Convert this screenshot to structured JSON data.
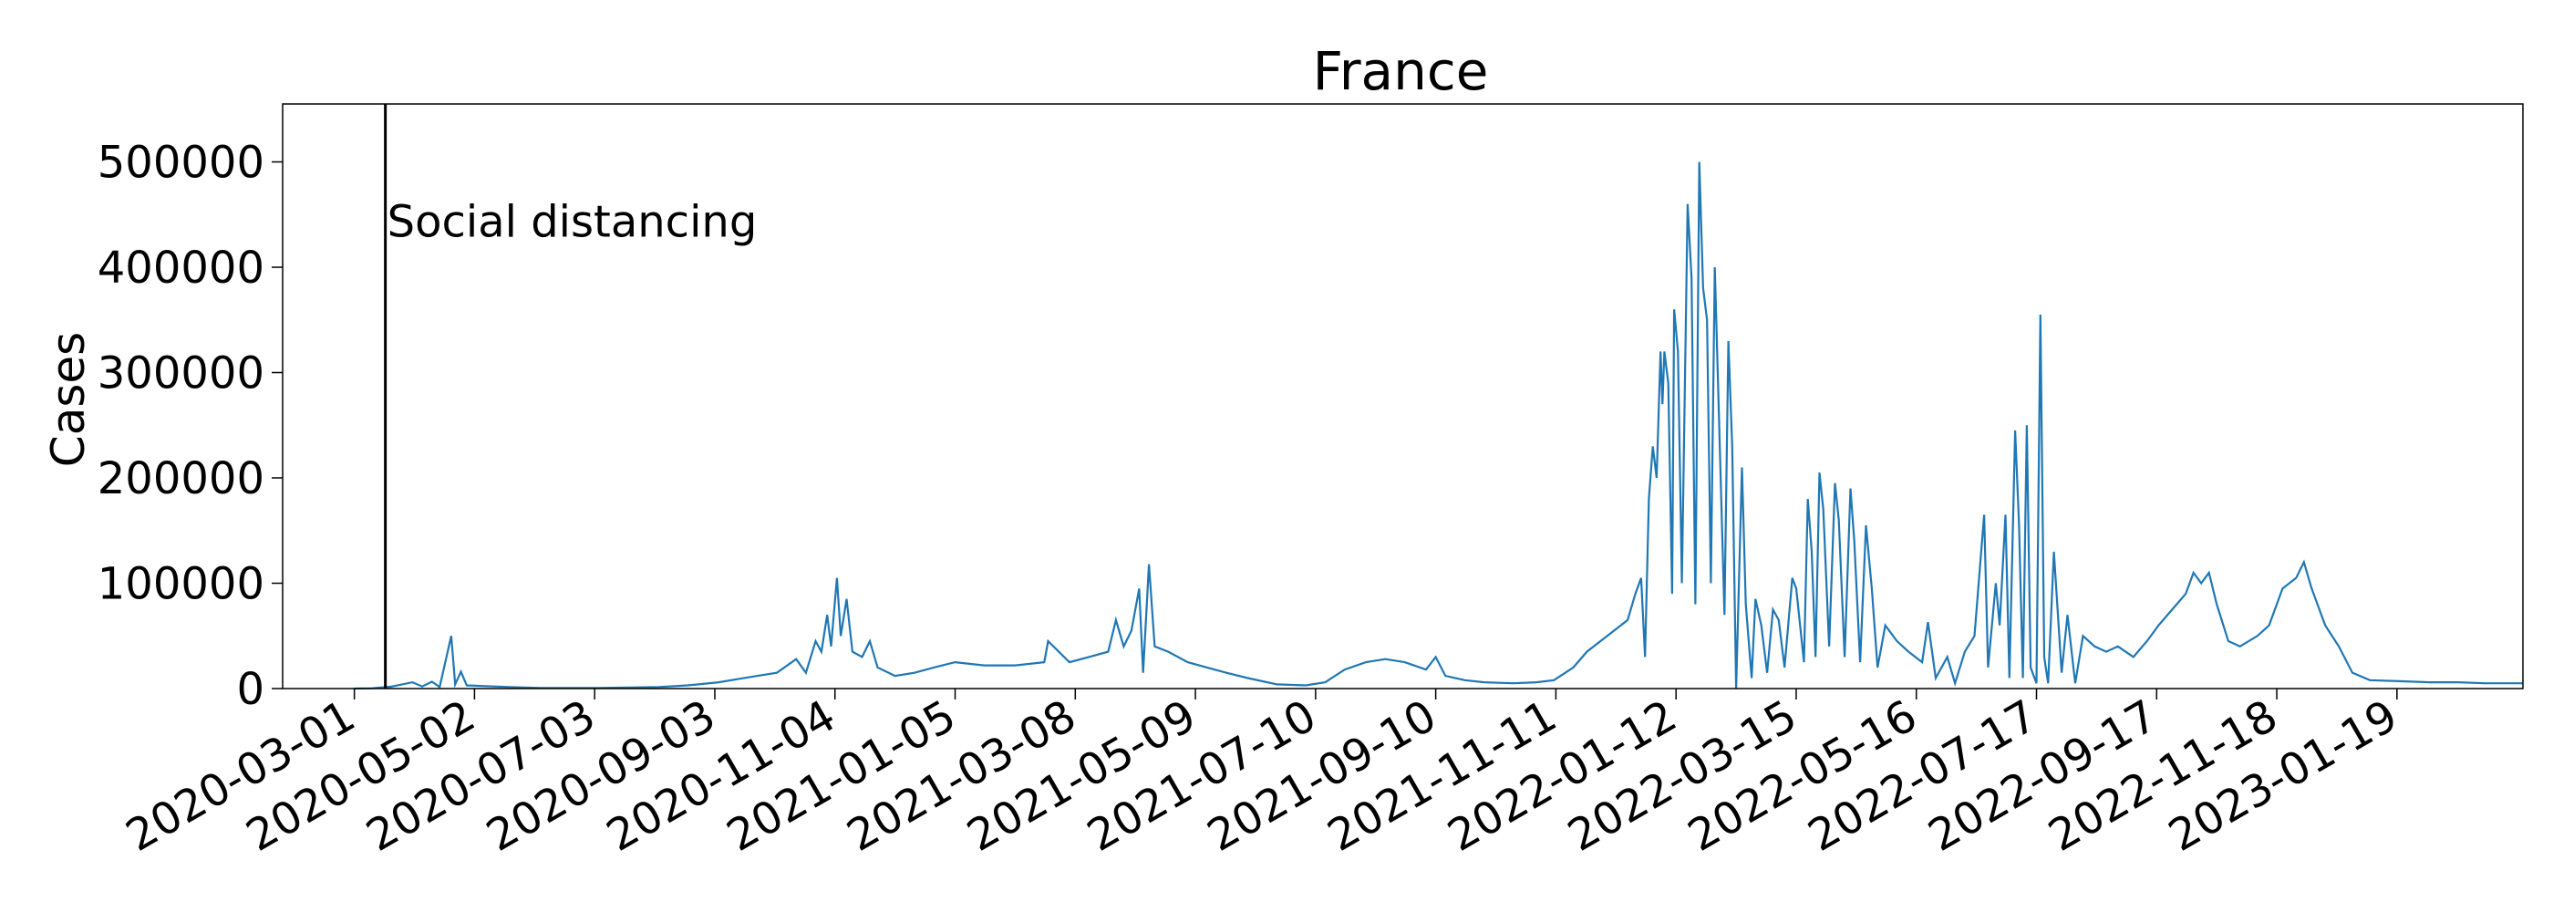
{
  "chart_data": {
    "type": "line",
    "title": "France",
    "xlabel": "",
    "ylabel": "Cases",
    "x_type": "date",
    "xlim": [
      "2020-01-24",
      "2023-03-25"
    ],
    "ylim": [
      0,
      555000
    ],
    "x_ticks": [
      "2020-03-01",
      "2020-05-02",
      "2020-07-03",
      "2020-09-03",
      "2020-11-04",
      "2021-01-05",
      "2021-03-08",
      "2021-05-09",
      "2021-07-10",
      "2021-09-10",
      "2021-11-11",
      "2022-01-12",
      "2022-03-15",
      "2022-05-16",
      "2022-07-17",
      "2022-09-17",
      "2022-11-18",
      "2023-01-19"
    ],
    "y_ticks": [
      0,
      100000,
      200000,
      300000,
      400000,
      500000
    ],
    "y_tick_labels": [
      "0",
      "100000",
      "200000",
      "300000",
      "400000",
      "500000"
    ],
    "grid": false,
    "legend": "none",
    "series_color": "#1f77b4",
    "annotations": [
      {
        "type": "vline",
        "x": "2020-03-17",
        "label": "Social distancing",
        "label_y": 415000,
        "color": "#000000"
      }
    ],
    "series": [
      {
        "points": [
          [
            "2020-03-01",
            0
          ],
          [
            "2020-03-10",
            300
          ],
          [
            "2020-03-20",
            1800
          ],
          [
            "2020-03-31",
            6000
          ],
          [
            "2020-04-05",
            2000
          ],
          [
            "2020-04-10",
            6500
          ],
          [
            "2020-04-14",
            1500
          ],
          [
            "2020-04-20",
            50000
          ],
          [
            "2020-04-22",
            4000
          ],
          [
            "2020-04-25",
            16000
          ],
          [
            "2020-04-28",
            3000
          ],
          [
            "2020-05-05",
            2500
          ],
          [
            "2020-05-20",
            1500
          ],
          [
            "2020-06-05",
            500
          ],
          [
            "2020-07-05",
            600
          ],
          [
            "2020-08-05",
            1500
          ],
          [
            "2020-08-20",
            3000
          ],
          [
            "2020-09-05",
            6000
          ],
          [
            "2020-09-15",
            9000
          ],
          [
            "2020-09-25",
            12000
          ],
          [
            "2020-10-05",
            15000
          ],
          [
            "2020-10-15",
            28000
          ],
          [
            "2020-10-20",
            15000
          ],
          [
            "2020-10-25",
            45000
          ],
          [
            "2020-10-28",
            35000
          ],
          [
            "2020-10-31",
            70000
          ],
          [
            "2020-11-02",
            40000
          ],
          [
            "2020-11-05",
            105000
          ],
          [
            "2020-11-07",
            50000
          ],
          [
            "2020-11-10",
            85000
          ],
          [
            "2020-11-13",
            35000
          ],
          [
            "2020-11-18",
            30000
          ],
          [
            "2020-11-22",
            45000
          ],
          [
            "2020-11-26",
            20000
          ],
          [
            "2020-12-05",
            12000
          ],
          [
            "2020-12-15",
            15000
          ],
          [
            "2020-12-25",
            20000
          ],
          [
            "2021-01-05",
            25000
          ],
          [
            "2021-01-20",
            22000
          ],
          [
            "2021-02-05",
            22000
          ],
          [
            "2021-02-20",
            25000
          ],
          [
            "2021-02-22",
            45000
          ],
          [
            "2021-03-05",
            25000
          ],
          [
            "2021-03-15",
            30000
          ],
          [
            "2021-03-25",
            35000
          ],
          [
            "2021-03-29",
            65000
          ],
          [
            "2021-04-02",
            40000
          ],
          [
            "2021-04-06",
            55000
          ],
          [
            "2021-04-10",
            95000
          ],
          [
            "2021-04-12",
            15000
          ],
          [
            "2021-04-15",
            118000
          ],
          [
            "2021-04-18",
            40000
          ],
          [
            "2021-04-25",
            35000
          ],
          [
            "2021-05-05",
            25000
          ],
          [
            "2021-05-15",
            20000
          ],
          [
            "2021-05-25",
            15000
          ],
          [
            "2021-06-05",
            10000
          ],
          [
            "2021-06-20",
            4000
          ],
          [
            "2021-07-05",
            3000
          ],
          [
            "2021-07-15",
            6000
          ],
          [
            "2021-07-25",
            18000
          ],
          [
            "2021-08-05",
            25000
          ],
          [
            "2021-08-15",
            28000
          ],
          [
            "2021-08-25",
            25000
          ],
          [
            "2021-09-05",
            18000
          ],
          [
            "2021-09-10",
            30000
          ],
          [
            "2021-09-15",
            12000
          ],
          [
            "2021-09-25",
            8000
          ],
          [
            "2021-10-05",
            6000
          ],
          [
            "2021-10-20",
            5000
          ],
          [
            "2021-11-01",
            6000
          ],
          [
            "2021-11-10",
            8000
          ],
          [
            "2021-11-20",
            20000
          ],
          [
            "2021-11-27",
            35000
          ],
          [
            "2021-12-04",
            45000
          ],
          [
            "2021-12-11",
            55000
          ],
          [
            "2021-12-18",
            65000
          ],
          [
            "2021-12-22",
            90000
          ],
          [
            "2021-12-25",
            105000
          ],
          [
            "2021-12-27",
            30000
          ],
          [
            "2021-12-29",
            180000
          ],
          [
            "2021-12-31",
            230000
          ],
          [
            "2022-01-02",
            200000
          ],
          [
            "2022-01-04",
            320000
          ],
          [
            "2022-01-05",
            270000
          ],
          [
            "2022-01-06",
            320000
          ],
          [
            "2022-01-08",
            290000
          ],
          [
            "2022-01-10",
            90000
          ],
          [
            "2022-01-11",
            360000
          ],
          [
            "2022-01-13",
            320000
          ],
          [
            "2022-01-15",
            100000
          ],
          [
            "2022-01-18",
            460000
          ],
          [
            "2022-01-20",
            390000
          ],
          [
            "2022-01-22",
            80000
          ],
          [
            "2022-01-24",
            500000
          ],
          [
            "2022-01-26",
            380000
          ],
          [
            "2022-01-28",
            350000
          ],
          [
            "2022-01-30",
            100000
          ],
          [
            "2022-02-01",
            400000
          ],
          [
            "2022-02-03",
            270000
          ],
          [
            "2022-02-06",
            70000
          ],
          [
            "2022-02-08",
            330000
          ],
          [
            "2022-02-10",
            230000
          ],
          [
            "2022-02-12",
            0
          ],
          [
            "2022-02-15",
            210000
          ],
          [
            "2022-02-17",
            80000
          ],
          [
            "2022-02-20",
            10000
          ],
          [
            "2022-02-22",
            85000
          ],
          [
            "2022-02-25",
            60000
          ],
          [
            "2022-02-28",
            15000
          ],
          [
            "2022-03-03",
            75000
          ],
          [
            "2022-03-06",
            65000
          ],
          [
            "2022-03-09",
            20000
          ],
          [
            "2022-03-13",
            105000
          ],
          [
            "2022-03-15",
            95000
          ],
          [
            "2022-03-19",
            25000
          ],
          [
            "2022-03-21",
            180000
          ],
          [
            "2022-03-23",
            130000
          ],
          [
            "2022-03-25",
            30000
          ],
          [
            "2022-03-27",
            205000
          ],
          [
            "2022-03-29",
            170000
          ],
          [
            "2022-04-01",
            40000
          ],
          [
            "2022-04-04",
            195000
          ],
          [
            "2022-04-06",
            160000
          ],
          [
            "2022-04-09",
            30000
          ],
          [
            "2022-04-12",
            190000
          ],
          [
            "2022-04-14",
            140000
          ],
          [
            "2022-04-17",
            25000
          ],
          [
            "2022-04-20",
            155000
          ],
          [
            "2022-04-23",
            95000
          ],
          [
            "2022-04-26",
            20000
          ],
          [
            "2022-04-30",
            60000
          ],
          [
            "2022-05-06",
            45000
          ],
          [
            "2022-05-12",
            35000
          ],
          [
            "2022-05-19",
            25000
          ],
          [
            "2022-05-22",
            63000
          ],
          [
            "2022-05-26",
            10000
          ],
          [
            "2022-06-01",
            30000
          ],
          [
            "2022-06-05",
            5000
          ],
          [
            "2022-06-10",
            35000
          ],
          [
            "2022-06-15",
            50000
          ],
          [
            "2022-06-20",
            165000
          ],
          [
            "2022-06-22",
            20000
          ],
          [
            "2022-06-26",
            100000
          ],
          [
            "2022-06-28",
            60000
          ],
          [
            "2022-07-01",
            165000
          ],
          [
            "2022-07-03",
            10000
          ],
          [
            "2022-07-06",
            245000
          ],
          [
            "2022-07-08",
            155000
          ],
          [
            "2022-07-10",
            10000
          ],
          [
            "2022-07-12",
            250000
          ],
          [
            "2022-07-14",
            20000
          ],
          [
            "2022-07-17",
            5000
          ],
          [
            "2022-07-19",
            355000
          ],
          [
            "2022-07-21",
            30000
          ],
          [
            "2022-07-23",
            5000
          ],
          [
            "2022-07-26",
            130000
          ],
          [
            "2022-07-30",
            15000
          ],
          [
            "2022-08-02",
            70000
          ],
          [
            "2022-08-06",
            5000
          ],
          [
            "2022-08-10",
            50000
          ],
          [
            "2022-08-16",
            40000
          ],
          [
            "2022-08-22",
            35000
          ],
          [
            "2022-08-28",
            40000
          ],
          [
            "2022-09-05",
            30000
          ],
          [
            "2022-09-12",
            45000
          ],
          [
            "2022-09-18",
            60000
          ],
          [
            "2022-09-25",
            75000
          ],
          [
            "2022-10-02",
            90000
          ],
          [
            "2022-10-06",
            110000
          ],
          [
            "2022-10-10",
            100000
          ],
          [
            "2022-10-14",
            110000
          ],
          [
            "2022-10-18",
            80000
          ],
          [
            "2022-10-24",
            45000
          ],
          [
            "2022-10-30",
            40000
          ],
          [
            "2022-11-08",
            50000
          ],
          [
            "2022-11-14",
            60000
          ],
          [
            "2022-11-21",
            95000
          ],
          [
            "2022-11-28",
            105000
          ],
          [
            "2022-12-02",
            120000
          ],
          [
            "2022-12-06",
            95000
          ],
          [
            "2022-12-13",
            60000
          ],
          [
            "2022-12-20",
            40000
          ],
          [
            "2022-12-27",
            15000
          ],
          [
            "2023-01-05",
            8000
          ],
          [
            "2023-01-20",
            7000
          ],
          [
            "2023-02-05",
            6000
          ],
          [
            "2023-02-20",
            6000
          ],
          [
            "2023-03-05",
            5000
          ],
          [
            "2023-03-25",
            5000
          ]
        ]
      }
    ]
  }
}
